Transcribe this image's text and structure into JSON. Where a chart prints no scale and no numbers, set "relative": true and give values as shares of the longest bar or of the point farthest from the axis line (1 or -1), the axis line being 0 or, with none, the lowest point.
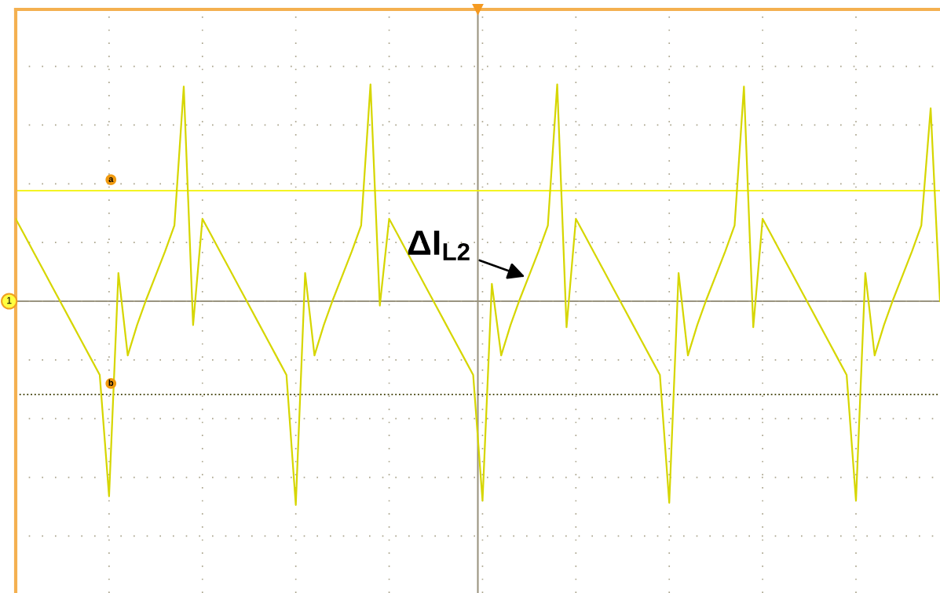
{
  "chart_data": {
    "type": "line",
    "relative": true,
    "grid": true,
    "marker": "none",
    "line_style": "solid",
    "categories": [
      null,
      null,
      null,
      null,
      null,
      null,
      null,
      null,
      null,
      null,
      null,
      null,
      null,
      null,
      null,
      null,
      null,
      null,
      null,
      null,
      null,
      null,
      null,
      null,
      null,
      null,
      null,
      null,
      null,
      null,
      null,
      null,
      null,
      null,
      null,
      null,
      null,
      null,
      null,
      null,
      null,
      null,
      null,
      null,
      null,
      null,
      null,
      null,
      null,
      null,
      null,
      null,
      null,
      null,
      null,
      null,
      null,
      null,
      null,
      null,
      null,
      null,
      null,
      null,
      null,
      null,
      null,
      null,
      null,
      null,
      null,
      null,
      null,
      null,
      null,
      null,
      null,
      null,
      null,
      null,
      null,
      null,
      null,
      null,
      null,
      null,
      null,
      null,
      null,
      null,
      null,
      null,
      null,
      null,
      null,
      null,
      null,
      null,
      null,
      null
    ],
    "series": [
      {
        "color": "#d6d600",
        "values": [
          0.38,
          0.3,
          0.22,
          0.14,
          0.06,
          -0.02,
          -0.1,
          -0.18,
          -0.26,
          -0.34,
          -0.9,
          0.13,
          -0.25,
          -0.11,
          0.01,
          0.12,
          0.23,
          0.35,
          0.99,
          -0.11,
          0.38,
          0.3,
          0.22,
          0.14,
          0.06,
          -0.02,
          -0.1,
          -0.18,
          -0.26,
          -0.34,
          -0.94,
          0.13,
          -0.25,
          -0.11,
          0.01,
          0.12,
          0.23,
          0.35,
          1.0,
          -0.02,
          0.38,
          0.3,
          0.22,
          0.14,
          0.06,
          -0.02,
          -0.1,
          -0.18,
          -0.26,
          -0.34,
          -0.92,
          0.08,
          -0.25,
          -0.11,
          0.01,
          0.12,
          0.23,
          0.35,
          1.0,
          -0.12,
          0.38,
          0.3,
          0.22,
          0.14,
          0.06,
          -0.02,
          -0.1,
          -0.18,
          -0.26,
          -0.34,
          -0.93,
          0.13,
          -0.25,
          -0.11,
          0.01,
          0.12,
          0.23,
          0.35,
          0.99,
          -0.12,
          0.38,
          0.3,
          0.22,
          0.14,
          0.06,
          -0.02,
          -0.1,
          -0.18,
          -0.26,
          -0.34,
          -0.92,
          0.13,
          -0.25,
          -0.11,
          0.01,
          0.12,
          0.23,
          0.35,
          0.89,
          0.0
        ]
      }
    ],
    "ref_lines": [
      {
        "axis": "y",
        "value": 0.51,
        "label": "a",
        "color": "#f2f200",
        "line_style": "solid"
      },
      {
        "axis": "y",
        "value": -0.43,
        "label": "b",
        "color": "#3a3a00",
        "line_style": "dotted"
      }
    ],
    "annotations": [
      "1",
      "ΔI$_{L2}$"
    ]
  }
}
